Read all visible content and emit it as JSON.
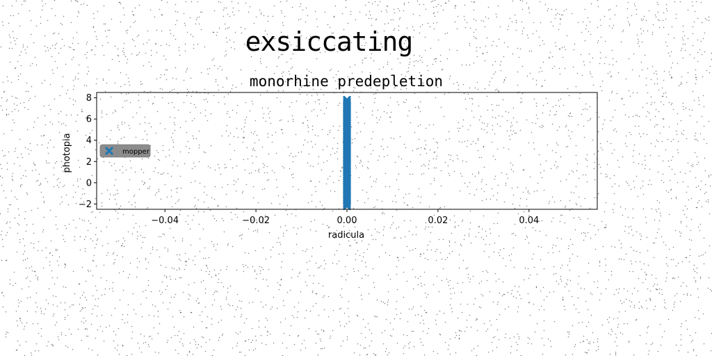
{
  "suptitle": "exsiccating",
  "chart_data": {
    "type": "scatter",
    "title": "monorhine predepletion",
    "xlabel": "radicula",
    "ylabel": "photopia",
    "xlim": [
      -0.055,
      0.055
    ],
    "ylim": [
      -2.5,
      8.5
    ],
    "xticks": [
      "−0.04",
      "−0.02",
      "0.00",
      "0.02",
      "0.04"
    ],
    "xtick_values": [
      -0.04,
      -0.02,
      0.0,
      0.02,
      0.04
    ],
    "yticks": [
      "−2",
      "0",
      "2",
      "4",
      "6",
      "8"
    ],
    "ytick_values": [
      -2,
      0,
      2,
      4,
      6,
      8
    ],
    "grid": false,
    "legend_placement": "center-left",
    "marker": "X",
    "series": [
      {
        "name": "mopper",
        "color": "#1f77b4",
        "x": [
          0,
          0,
          0,
          0,
          0,
          0,
          0,
          0,
          0,
          0,
          0,
          0,
          0,
          0,
          0,
          0,
          0,
          0,
          0,
          0,
          0,
          0,
          0,
          0,
          0,
          0,
          0,
          0,
          0,
          0,
          0,
          0,
          0,
          0,
          0,
          0,
          0,
          0,
          0,
          0,
          0,
          0,
          0,
          0,
          0,
          0,
          0,
          0,
          0,
          0,
          0
        ],
        "y": [
          -2.2,
          -2.0,
          -1.8,
          -1.6,
          -1.4,
          -1.2,
          -1.0,
          -0.8,
          -0.6,
          -0.4,
          -0.2,
          0.0,
          0.2,
          0.4,
          0.6,
          0.8,
          1.0,
          1.2,
          1.4,
          1.6,
          1.8,
          2.0,
          2.2,
          2.4,
          2.6,
          2.8,
          3.0,
          3.2,
          3.4,
          3.6,
          3.8,
          4.0,
          4.2,
          4.4,
          4.6,
          4.8,
          5.0,
          5.2,
          5.4,
          5.6,
          5.8,
          6.0,
          6.2,
          6.4,
          6.6,
          6.8,
          7.0,
          7.2,
          7.4,
          7.6,
          7.8
        ]
      }
    ]
  }
}
